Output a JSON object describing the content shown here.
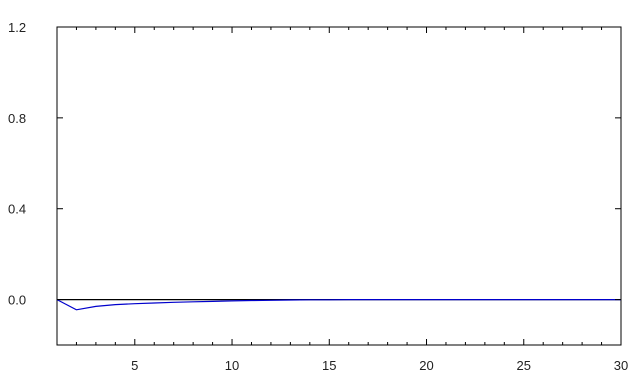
{
  "chart_data": {
    "type": "line",
    "title": "",
    "xlabel": "",
    "ylabel": "",
    "xlim": [
      1,
      30
    ],
    "ylim": [
      -0.2,
      1.2
    ],
    "x_ticks": [
      5,
      10,
      15,
      20,
      25,
      30
    ],
    "y_ticks": [
      0.0,
      0.4,
      0.8,
      1.2
    ],
    "x_tick_labels": [
      "5",
      "10",
      "15",
      "20",
      "25",
      "30"
    ],
    "y_tick_labels": [
      "0.0",
      "0.4",
      "0.8",
      "1.2"
    ],
    "grid": false,
    "legend": "none",
    "series": [
      {
        "color": "#0000cc",
        "x": [
          1,
          2,
          3,
          4,
          5,
          6,
          7,
          8,
          9,
          10,
          11,
          12,
          13,
          14,
          15,
          16,
          17,
          18,
          19,
          20,
          21,
          22,
          23,
          24,
          25,
          26,
          27,
          28,
          29,
          30
        ],
        "y": [
          0.0,
          -0.045,
          -0.03,
          -0.022,
          -0.018,
          -0.015,
          -0.012,
          -0.01,
          -0.008,
          -0.006,
          -0.004,
          -0.003,
          -0.002,
          -0.001,
          -0.001,
          0.0,
          0.0,
          0.0,
          0.0,
          0.0,
          0.0,
          0.0,
          0.0,
          0.0,
          0.0,
          0.0,
          0.0,
          0.0,
          0.0,
          0.0
        ]
      },
      {
        "color": "#000000",
        "x": [
          1,
          2,
          3,
          4,
          5,
          6,
          7,
          8,
          9,
          10,
          11,
          12,
          13,
          14,
          15,
          16,
          17,
          18,
          19,
          20,
          21,
          22,
          23,
          24,
          25,
          26,
          27,
          28,
          29,
          30
        ],
        "y": [
          0,
          0,
          0,
          0,
          0,
          0,
          0,
          0,
          0,
          0,
          0,
          0,
          0,
          0,
          0,
          0,
          0,
          0,
          0,
          0,
          0,
          0,
          0,
          0,
          0,
          0,
          0,
          0,
          0,
          0
        ]
      }
    ]
  }
}
